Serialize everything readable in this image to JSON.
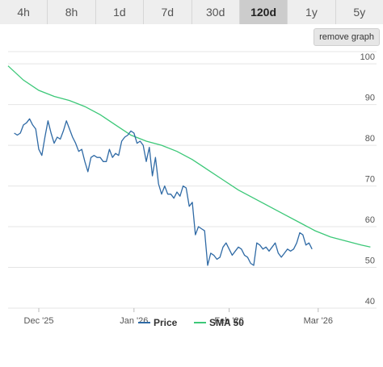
{
  "tabs": [
    {
      "label": "4h",
      "active": false
    },
    {
      "label": "8h",
      "active": false
    },
    {
      "label": "1d",
      "active": false
    },
    {
      "label": "7d",
      "active": false
    },
    {
      "label": "30d",
      "active": false
    },
    {
      "label": "120d",
      "active": true
    },
    {
      "label": "1y",
      "active": false
    },
    {
      "label": "5y",
      "active": false
    }
  ],
  "remove_graph_label": "remove graph",
  "colors": {
    "price": "#2f6aa5",
    "sma": "#3cc878",
    "tab_active": "#cccccc",
    "tab": "#eeeeee"
  },
  "chart_data": {
    "type": "line",
    "x_ticks": [
      "Dec '25",
      "Jan '26",
      "Feb '26",
      "Mar '26"
    ],
    "x_tick_positions": [
      10,
      41,
      72,
      101
    ],
    "x_range": [
      0,
      120
    ],
    "y_ticks": [
      "40",
      "50",
      "60",
      "70",
      "80",
      "90",
      "100"
    ],
    "ylim": [
      40,
      103
    ],
    "grid": true,
    "legend_position": "bottom",
    "series": [
      {
        "name": "Price",
        "values": [
          83,
          82.5,
          83,
          85,
          85.5,
          86.5,
          85,
          84,
          79,
          77.5,
          82,
          86,
          83,
          80.5,
          82,
          81.5,
          83.5,
          86,
          84,
          82,
          80.5,
          78.5,
          79,
          76,
          73.5,
          77,
          77.5,
          77,
          77,
          76,
          76,
          79,
          77,
          78,
          77.5,
          81,
          82,
          82.5,
          83.5,
          83,
          80.5,
          81,
          80,
          76,
          79.5,
          72.5,
          77,
          70.5,
          68,
          70,
          68,
          68,
          67,
          68.5,
          67.5,
          70,
          69.5,
          65,
          66,
          58,
          60,
          59.5,
          59,
          50.5,
          53.5,
          53,
          52,
          52.5,
          55,
          56,
          54.5,
          53,
          54,
          55,
          54.5,
          53,
          52.5,
          51,
          50.5,
          56,
          55.5,
          54.5,
          55,
          54,
          55,
          56,
          53.5,
          52.5,
          53.5,
          54.5,
          54,
          54.5,
          56,
          58.5,
          58,
          55.5,
          56,
          54.5
        ],
        "x_start": 2,
        "x_step": 1
      },
      {
        "name": "SMA 50",
        "points": [
          [
            0,
            99.5
          ],
          [
            5,
            96
          ],
          [
            10,
            93.5
          ],
          [
            15,
            92
          ],
          [
            20,
            91
          ],
          [
            25,
            89.5
          ],
          [
            30,
            87.5
          ],
          [
            35,
            85
          ],
          [
            40,
            82.5
          ],
          [
            45,
            81
          ],
          [
            50,
            80
          ],
          [
            55,
            78.5
          ],
          [
            60,
            76.5
          ],
          [
            65,
            74
          ],
          [
            70,
            71.5
          ],
          [
            75,
            69
          ],
          [
            80,
            67
          ],
          [
            85,
            65
          ],
          [
            90,
            63
          ],
          [
            95,
            61
          ],
          [
            100,
            59
          ],
          [
            105,
            57.5
          ],
          [
            110,
            56.5
          ],
          [
            115,
            55.5
          ],
          [
            118,
            55
          ]
        ]
      }
    ]
  }
}
